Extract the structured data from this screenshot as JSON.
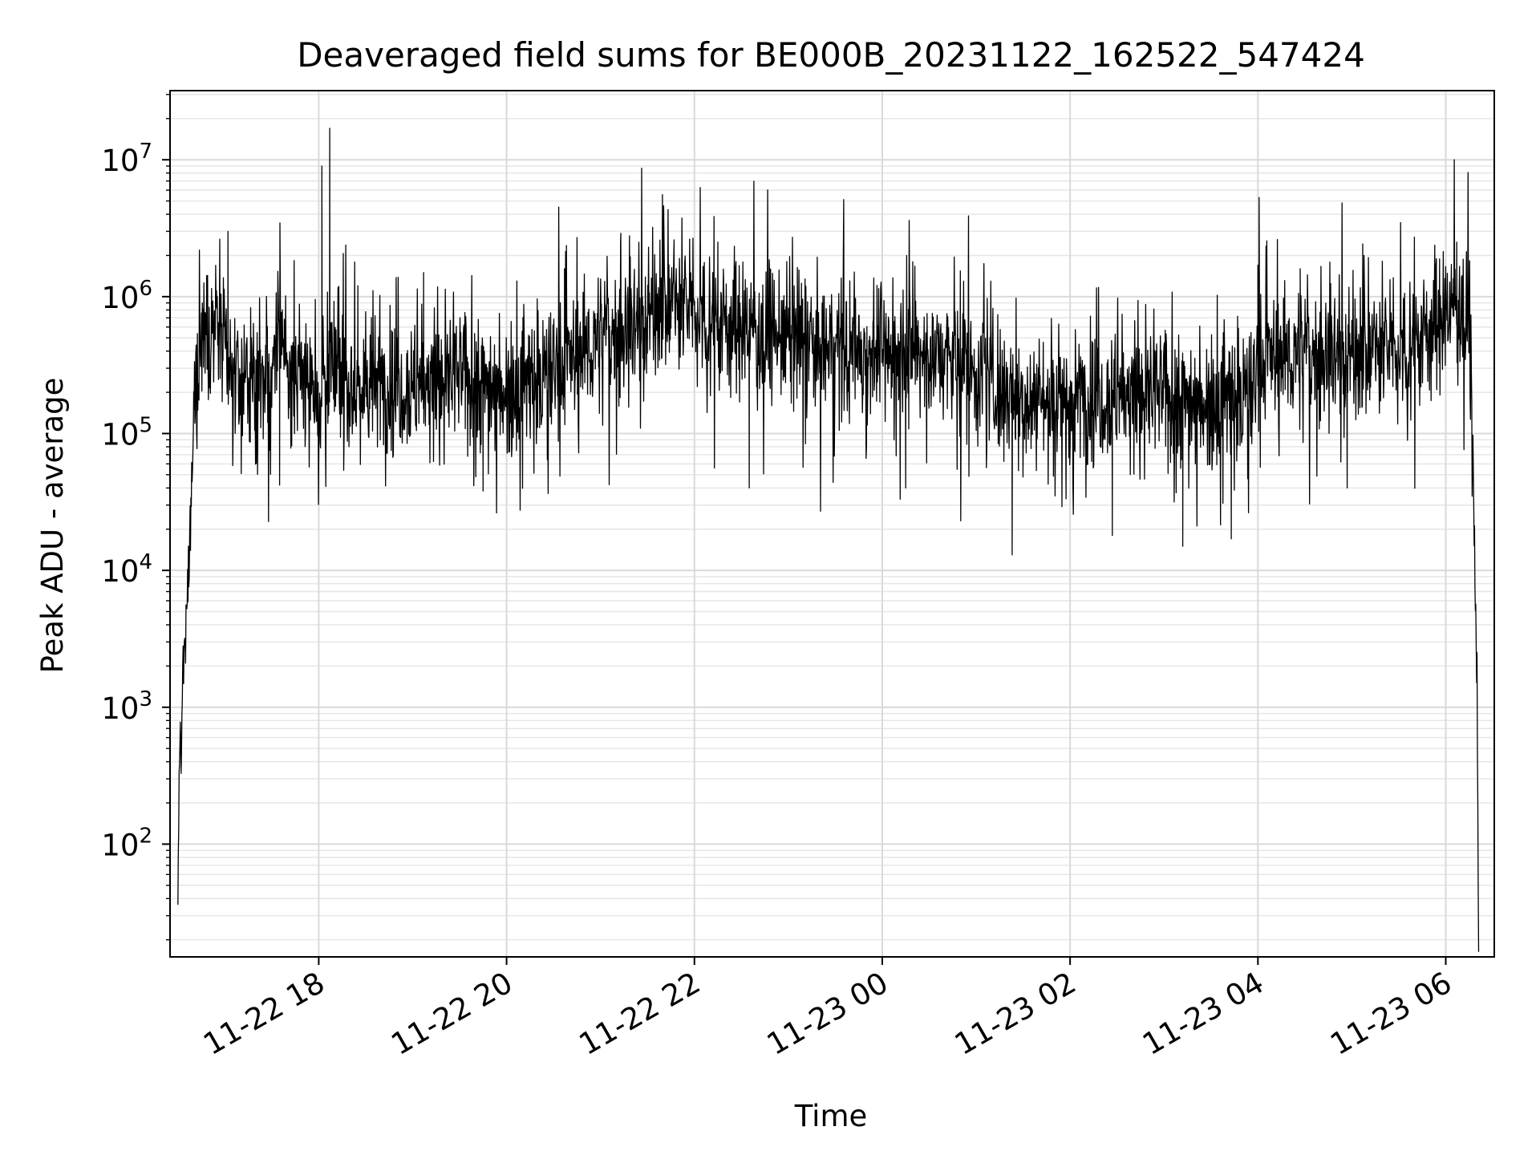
{
  "chart_data": {
    "type": "line",
    "title": "Deaveraged field sums for BE000B_20231122_162522_547424",
    "xlabel": "Time",
    "ylabel": "Peak ADU - average",
    "yscale": "log",
    "ylim": [
      15,
      32000000
    ],
    "xlim": [
      "2023-11-22T16:25",
      "2023-11-23T06:31"
    ],
    "grid": true,
    "x_ticks": [
      {
        "label": "11-22 18",
        "t": "2023-11-22T18:00"
      },
      {
        "label": "11-22 20",
        "t": "2023-11-22T20:00"
      },
      {
        "label": "11-22 22",
        "t": "2023-11-22T22:00"
      },
      {
        "label": "11-23 00",
        "t": "2023-11-23T00:00"
      },
      {
        "label": "11-23 02",
        "t": "2023-11-23T02:00"
      },
      {
        "label": "11-23 04",
        "t": "2023-11-23T04:00"
      },
      {
        "label": "11-23 06",
        "t": "2023-11-23T06:00"
      }
    ],
    "y_ticks": [
      {
        "base": "10",
        "exp": "2",
        "value": 100
      },
      {
        "base": "10",
        "exp": "3",
        "value": 1000
      },
      {
        "base": "10",
        "exp": "4",
        "value": 10000
      },
      {
        "base": "10",
        "exp": "5",
        "value": 100000
      },
      {
        "base": "10",
        "exp": "6",
        "value": 1000000
      },
      {
        "base": "10",
        "exp": "7",
        "value": 10000000
      }
    ],
    "series": [
      {
        "color": "#000000",
        "baseline": [
          [
            "2023-11-22T16:30",
            30
          ],
          [
            "2023-11-22T16:31",
            700
          ],
          [
            "2023-11-22T16:32",
            300
          ],
          [
            "2023-11-22T16:33",
            1800
          ],
          [
            "2023-11-22T16:35",
            3000
          ],
          [
            "2023-11-22T16:36",
            6000
          ],
          [
            "2023-11-22T16:38",
            20000
          ],
          [
            "2023-11-22T16:40",
            100000
          ],
          [
            "2023-11-22T16:42",
            300000
          ],
          [
            "2023-11-22T16:45",
            500000
          ],
          [
            "2023-11-22T16:50",
            700000
          ],
          [
            "2023-11-22T16:58",
            500000
          ],
          [
            "2023-11-22T17:05",
            250000
          ],
          [
            "2023-11-22T17:30",
            220000
          ],
          [
            "2023-11-22T17:35",
            700000
          ],
          [
            "2023-11-22T17:42",
            250000
          ],
          [
            "2023-11-22T18:00",
            230000
          ],
          [
            "2023-11-22T18:10",
            300000
          ],
          [
            "2023-11-22T18:20",
            220000
          ],
          [
            "2023-11-22T19:00",
            230000
          ],
          [
            "2023-11-22T19:30",
            260000
          ],
          [
            "2023-11-22T20:00",
            220000
          ],
          [
            "2023-11-22T20:30",
            280000
          ],
          [
            "2023-11-22T21:00",
            500000
          ],
          [
            "2023-11-22T21:20",
            600000
          ],
          [
            "2023-11-22T21:40",
            900000
          ],
          [
            "2023-11-22T22:00",
            800000
          ],
          [
            "2023-11-22T22:30",
            600000
          ],
          [
            "2023-11-22T23:00",
            500000
          ],
          [
            "2023-11-22T23:30",
            400000
          ],
          [
            "2023-11-23T00:00",
            400000
          ],
          [
            "2023-11-23T00:30",
            380000
          ],
          [
            "2023-11-23T01:00",
            300000
          ],
          [
            "2023-11-23T01:20",
            180000
          ],
          [
            "2023-11-23T02:00",
            180000
          ],
          [
            "2023-11-23T02:30",
            200000
          ],
          [
            "2023-11-23T03:00",
            190000
          ],
          [
            "2023-11-23T03:30",
            180000
          ],
          [
            "2023-11-23T03:58",
            200000
          ],
          [
            "2023-11-23T04:00",
            350000
          ],
          [
            "2023-11-23T04:30",
            380000
          ],
          [
            "2023-11-23T05:00",
            380000
          ],
          [
            "2023-11-23T05:30",
            420000
          ],
          [
            "2023-11-23T05:50",
            600000
          ],
          [
            "2023-11-23T06:10",
            900000
          ],
          [
            "2023-11-23T06:15",
            700000
          ],
          [
            "2023-11-23T06:17",
            100000
          ],
          [
            "2023-11-23T06:19",
            5000
          ],
          [
            "2023-11-23T06:20",
            1500
          ],
          [
            "2023-11-23T06:21",
            15
          ]
        ],
        "spikes": [
          [
            "2023-11-22T17:02",
            3000000
          ],
          [
            "2023-11-22T18:02",
            9000000
          ],
          [
            "2023-11-22T18:07",
            17000000
          ],
          [
            "2023-11-22T18:25",
            1200000
          ],
          [
            "2023-11-22T19:07",
            1500000
          ],
          [
            "2023-11-22T20:37",
            1600000
          ],
          [
            "2023-11-22T21:13",
            2900000
          ],
          [
            "2023-11-22T21:47",
            2600000
          ],
          [
            "2023-11-22T22:15",
            2500000
          ],
          [
            "2023-11-22T22:48",
            1600000
          ],
          [
            "2023-11-23T04:00",
            1700000
          ],
          [
            "2023-11-23T04:27",
            1600000
          ],
          [
            "2023-11-23T06:07",
            2500000
          ]
        ],
        "dips": [
          [
            "2023-11-22T17:35",
            42000
          ],
          [
            "2023-11-22T19:45",
            38000
          ],
          [
            "2023-11-22T22:35",
            40000
          ],
          [
            "2023-11-23T00:15",
            40000
          ],
          [
            "2023-11-23T01:23",
            13000
          ],
          [
            "2023-11-23T02:27",
            18000
          ],
          [
            "2023-11-23T03:12",
            15000
          ],
          [
            "2023-11-23T03:43",
            17000
          ],
          [
            "2023-11-23T04:57",
            40000
          ]
        ]
      }
    ]
  }
}
